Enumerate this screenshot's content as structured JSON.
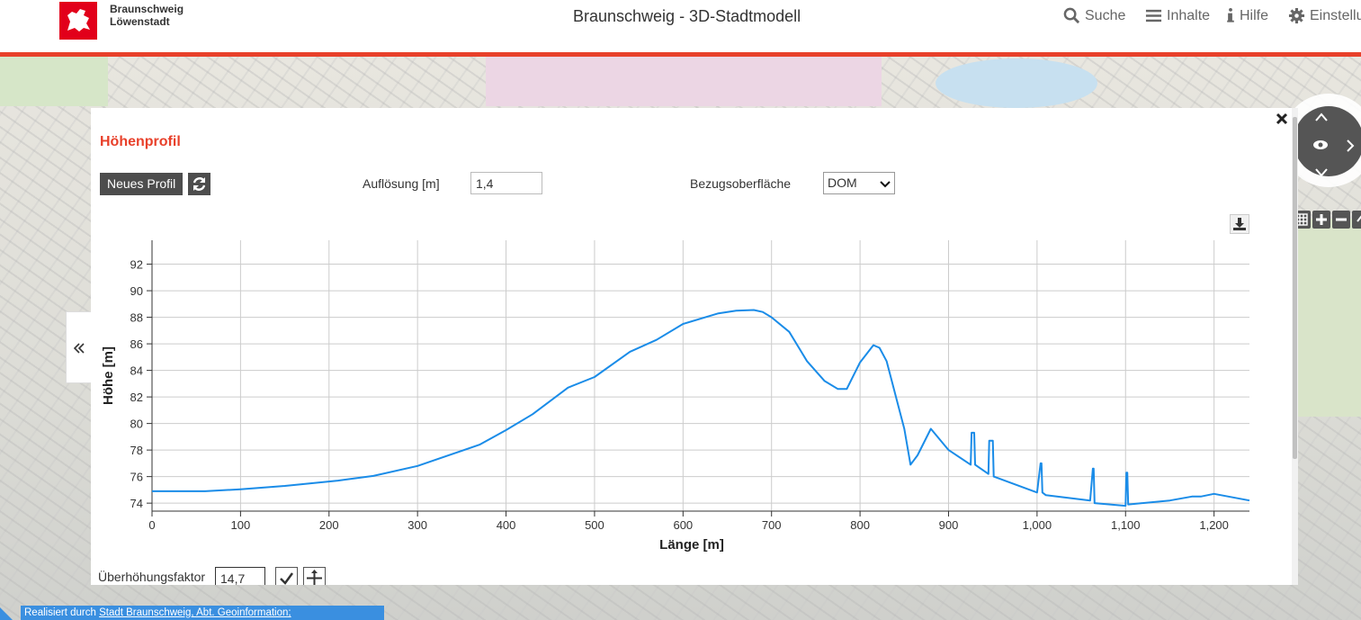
{
  "header": {
    "logo_line1": "Braunschweig",
    "logo_line2": "Löwenstadt",
    "title": "Braunschweig - 3D-Stadtmodell",
    "nav": [
      {
        "label": "Suche",
        "icon": "search-icon"
      },
      {
        "label": "Inhalte",
        "icon": "menu-icon"
      },
      {
        "label": "Hilfe",
        "icon": "info-icon"
      },
      {
        "label": "Einstellu",
        "icon": "gear-icon"
      }
    ],
    "accent_color": "#e8402a"
  },
  "panel": {
    "title": "Höhenprofil",
    "new_profile_label": "Neues Profil",
    "resolution_label": "Auflösung [m]",
    "resolution_value": "1,4",
    "surface_label": "Bezugsoberfläche",
    "surface_value": "DOM",
    "exaggeration_label": "Überhöhungsfaktor",
    "exaggeration_value": "14,7"
  },
  "attribution": {
    "prefix": "Realisiert durch ",
    "link": "Stadt Braunschweig, Abt. Geoinformation;"
  },
  "chart_data": {
    "type": "line",
    "title": "",
    "xlabel": "Länge [m]",
    "ylabel": "Höhe [m]",
    "xlim": [
      0,
      1240
    ],
    "ylim": [
      73.4,
      93.8
    ],
    "xticks": [
      0,
      100,
      200,
      300,
      400,
      500,
      600,
      700,
      800,
      900,
      1000,
      1100,
      1200
    ],
    "xtick_labels": [
      "0",
      "100",
      "200",
      "300",
      "400",
      "500",
      "600",
      "700",
      "800",
      "900",
      "1,000",
      "1,100",
      "1,200"
    ],
    "yticks": [
      74,
      76,
      78,
      80,
      82,
      84,
      86,
      88,
      90,
      92
    ],
    "grid": true,
    "color": "#1a8ce8",
    "series": [
      {
        "x": [
          0,
          30,
          60,
          100,
          150,
          210,
          250,
          300,
          370,
          400,
          430,
          470,
          500,
          540,
          570,
          600,
          640,
          660,
          680,
          690,
          700,
          720,
          740,
          760,
          775,
          785,
          800,
          815,
          822,
          830,
          850,
          857,
          865,
          880,
          900,
          925,
          926,
          929,
          930,
          945,
          946,
          950,
          951,
          1000,
          1004,
          1005,
          1006,
          1010,
          1060,
          1063,
          1064,
          1065,
          1100,
          1101,
          1102,
          1103,
          1150,
          1175,
          1185,
          1200,
          1240
        ],
        "y": [
          74.9,
          74.9,
          74.9,
          75.05,
          75.3,
          75.7,
          76.05,
          76.8,
          78.4,
          79.5,
          80.7,
          82.7,
          83.5,
          85.4,
          86.3,
          87.5,
          88.3,
          88.5,
          88.55,
          88.4,
          88.0,
          86.9,
          84.7,
          83.2,
          82.6,
          82.6,
          84.6,
          85.9,
          85.7,
          84.7,
          79.6,
          76.9,
          77.6,
          79.6,
          78.0,
          76.9,
          79.3,
          79.3,
          76.9,
          76.2,
          78.7,
          78.7,
          76.0,
          74.8,
          77.0,
          77.0,
          74.8,
          74.6,
          74.2,
          76.6,
          76.6,
          74.0,
          73.8,
          76.3,
          76.3,
          73.9,
          74.2,
          74.5,
          74.5,
          74.7,
          74.2
        ]
      }
    ]
  }
}
